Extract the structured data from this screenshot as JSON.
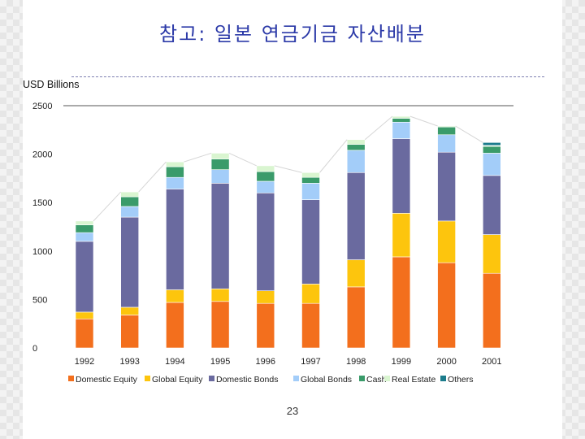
{
  "slide": {
    "title": "참고: 일본 연금기금 자산배분",
    "page_number": "23"
  },
  "chart_data": {
    "type": "bar",
    "stacked": true,
    "ylabel": "USD Billions",
    "ylim": [
      0,
      2500
    ],
    "yticks": [
      0,
      500,
      1000,
      1500,
      2000,
      2500
    ],
    "categories": [
      "1992",
      "1993",
      "1994",
      "1995",
      "1996",
      "1997",
      "1998",
      "1999",
      "2000",
      "2001"
    ],
    "legend_position": "bottom",
    "series": [
      {
        "name": "Domestic Equity",
        "color": "#f36f1d",
        "values": [
          300,
          340,
          470,
          480,
          460,
          460,
          630,
          940,
          880,
          770
        ]
      },
      {
        "name": "Global Equity",
        "color": "#fdc50d",
        "values": [
          70,
          80,
          130,
          130,
          130,
          200,
          280,
          450,
          430,
          400
        ]
      },
      {
        "name": "Domestic Bonds",
        "color": "#6a6a9f",
        "values": [
          730,
          930,
          1040,
          1090,
          1010,
          870,
          900,
          770,
          710,
          610
        ]
      },
      {
        "name": "Global Bonds",
        "color": "#a3cdf9",
        "values": [
          90,
          110,
          120,
          140,
          120,
          170,
          230,
          170,
          180,
          230
        ]
      },
      {
        "name": "Cash",
        "color": "#3a9b6a",
        "values": [
          80,
          100,
          110,
          110,
          100,
          60,
          60,
          40,
          80,
          70
        ]
      },
      {
        "name": "Real Estate",
        "color": "#d9f5d0",
        "values": [
          40,
          50,
          50,
          60,
          60,
          50,
          50,
          20,
          10,
          10
        ]
      },
      {
        "name": "Others",
        "color": "#1c7c8c",
        "values": [
          0,
          0,
          0,
          0,
          0,
          0,
          0,
          0,
          0,
          30
        ]
      }
    ]
  }
}
